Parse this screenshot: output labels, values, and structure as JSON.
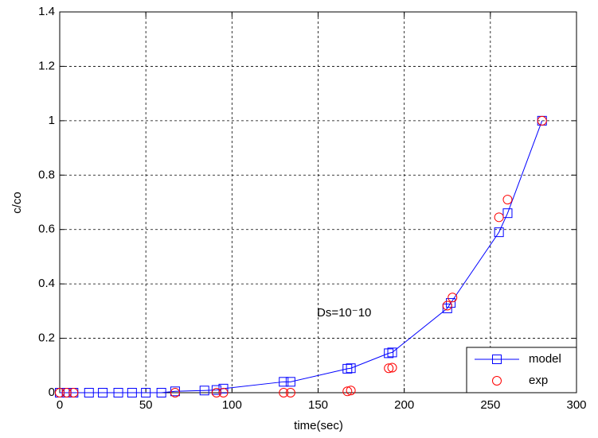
{
  "chart_data": {
    "type": "line",
    "xlabel": "time(sec)",
    "ylabel": "c/co",
    "annotation": "Ds=10⁻10",
    "xlim": [
      0,
      300
    ],
    "xticks": [
      0,
      50,
      100,
      150,
      200,
      250,
      300
    ],
    "ylim": [
      0,
      1.4
    ],
    "yticks": [
      0,
      0.2,
      0.4,
      0.6,
      0.8,
      1,
      1.2,
      1.4
    ],
    "grid": true,
    "legend": "lower right",
    "series": [
      {
        "name": "model",
        "color": "#0000ff",
        "marker": "square",
        "linestyle": "solid",
        "x": [
          0,
          4,
          8,
          17,
          25,
          34,
          42,
          50,
          59,
          67,
          84,
          91,
          95,
          130,
          134,
          167,
          169,
          191,
          193,
          225,
          227,
          255,
          260,
          280
        ],
        "values": [
          0,
          0,
          0,
          0,
          0,
          0,
          0,
          0,
          0,
          0.005,
          0.008,
          0.01,
          0.015,
          0.04,
          0.04,
          0.088,
          0.09,
          0.145,
          0.148,
          0.31,
          0.33,
          0.59,
          0.66,
          1.0
        ]
      },
      {
        "name": "exp",
        "color": "#ff0000",
        "marker": "circle",
        "linestyle": "none",
        "x": [
          0,
          4,
          8,
          67,
          91,
          95,
          130,
          134,
          167,
          169,
          191,
          193,
          225,
          228,
          255,
          260,
          280
        ],
        "values": [
          0,
          0,
          0,
          0,
          0,
          0,
          0,
          0,
          0.005,
          0.008,
          0.09,
          0.092,
          0.32,
          0.35,
          0.645,
          0.71,
          1.0
        ]
      }
    ]
  }
}
